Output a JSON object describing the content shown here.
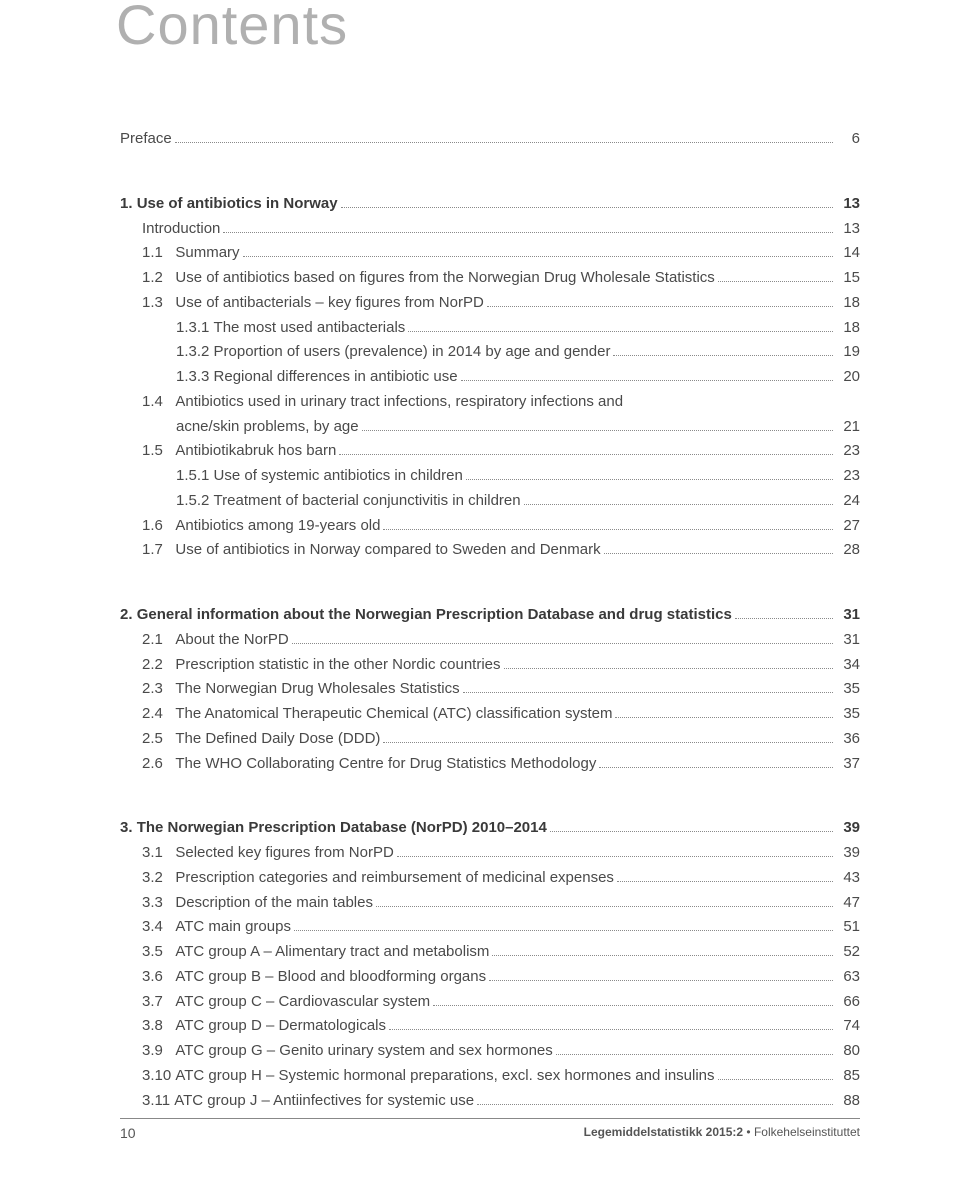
{
  "heading": "Contents",
  "footer": {
    "page": "10",
    "issue": "Legemiddelstatistikk 2015:2",
    "publisher": "Folkehelseinstituttet",
    "bullet": "•"
  },
  "sections": [
    {
      "rows": [
        {
          "num": "",
          "label": "Preface",
          "page": "6",
          "bold": false,
          "indent": 0
        }
      ]
    },
    {
      "rows": [
        {
          "num": "1. ",
          "label": "Use of antibiotics in Norway",
          "page": "13",
          "bold": true,
          "indent": 0
        },
        {
          "num": "",
          "label": "Introduction",
          "page": "13",
          "bold": false,
          "indent": 1
        },
        {
          "num": "1.1   ",
          "label": "Summary",
          "page": "14",
          "bold": false,
          "indent": 1
        },
        {
          "num": "1.2   ",
          "label": "Use of antibiotics based on figures from the Norwegian Drug Wholesale Statistics",
          "page": "15",
          "bold": false,
          "indent": 1
        },
        {
          "num": "1.3   ",
          "label": "Use of antibacterials – key figures from NorPD",
          "page": "18",
          "bold": false,
          "indent": 1
        },
        {
          "num": "1.3.1 ",
          "label": "The most used antibacterials",
          "page": "18",
          "bold": false,
          "indent": 2
        },
        {
          "num": "1.3.2 ",
          "label": "Proportion of users (prevalence) in 2014 by age and gender",
          "page": "19",
          "bold": false,
          "indent": 2
        },
        {
          "num": "1.3.3 ",
          "label": "Regional differences in antibiotic use",
          "page": "20",
          "bold": false,
          "indent": 2
        },
        {
          "num": "1.4   ",
          "label": "Antibiotics used in urinary tract infections, respiratory infections and",
          "page": "",
          "bold": false,
          "indent": 1,
          "nowrap": true
        },
        {
          "num": "",
          "label": "acne/skin problems, by age",
          "page": "21",
          "bold": false,
          "indent": 0,
          "continue": true
        },
        {
          "num": "1.5   ",
          "label": "Antibiotikabruk hos barn",
          "page": "23",
          "bold": false,
          "indent": 1
        },
        {
          "num": "1.5.1 ",
          "label": "Use of systemic antibiotics in children",
          "page": "23",
          "bold": false,
          "indent": 2
        },
        {
          "num": "1.5.2 ",
          "label": "Treatment of bacterial conjunctivitis in children",
          "page": "24",
          "bold": false,
          "indent": 2
        },
        {
          "num": "1.6   ",
          "label": "Antibiotics among 19-years old",
          "page": "27",
          "bold": false,
          "indent": 1
        },
        {
          "num": "1.7   ",
          "label": "Use of antibiotics in Norway compared to Sweden and Denmark",
          "page": "28",
          "bold": false,
          "indent": 1
        }
      ]
    },
    {
      "rows": [
        {
          "num": "2. ",
          "label": "General information about the Norwegian Prescription Database and drug statistics",
          "page": "31",
          "bold": true,
          "indent": 0
        },
        {
          "num": "2.1   ",
          "label": "About the NorPD",
          "page": "31",
          "bold": false,
          "indent": 1
        },
        {
          "num": "2.2   ",
          "label": "Prescription statistic in the other Nordic countries",
          "page": "34",
          "bold": false,
          "indent": 1
        },
        {
          "num": "2.3   ",
          "label": "The Norwegian Drug Wholesales Statistics",
          "page": "35",
          "bold": false,
          "indent": 1
        },
        {
          "num": "2.4   ",
          "label": "The Anatomical Therapeutic Chemical (ATC) classification system",
          "page": "35",
          "bold": false,
          "indent": 1
        },
        {
          "num": "2.5   ",
          "label": "The Defined Daily Dose (DDD)",
          "page": "36",
          "bold": false,
          "indent": 1
        },
        {
          "num": "2.6   ",
          "label": "The WHO Collaborating Centre for Drug Statistics Methodology",
          "page": "37",
          "bold": false,
          "indent": 1
        }
      ]
    },
    {
      "rows": [
        {
          "num": "3. ",
          "label": "The Norwegian Prescription Database (NorPD) 2010–2014",
          "page": "39",
          "bold": true,
          "indent": 0
        },
        {
          "num": "3.1   ",
          "label": "Selected key figures from NorPD",
          "page": "39",
          "bold": false,
          "indent": 1
        },
        {
          "num": "3.2   ",
          "label": "Prescription categories and reimbursement of medicinal expenses",
          "page": "43",
          "bold": false,
          "indent": 1
        },
        {
          "num": "3.3   ",
          "label": "Description of the main tables",
          "page": "47",
          "bold": false,
          "indent": 1
        },
        {
          "num": "3.4   ",
          "label": "ATC main groups",
          "page": "51",
          "bold": false,
          "indent": 1
        },
        {
          "num": "3.5   ",
          "label": "ATC group A – Alimentary tract and metabolism",
          "page": "52",
          "bold": false,
          "indent": 1
        },
        {
          "num": "3.6   ",
          "label": "ATC group B – Blood and bloodforming organs",
          "page": "63",
          "bold": false,
          "indent": 1
        },
        {
          "num": "3.7   ",
          "label": "ATC group C – Cardiovascular system",
          "page": "66",
          "bold": false,
          "indent": 1
        },
        {
          "num": "3.8   ",
          "label": "ATC group D – Dermatologicals",
          "page": "74",
          "bold": false,
          "indent": 1
        },
        {
          "num": "3.9   ",
          "label": "ATC group G – Genito urinary system and sex hormones",
          "page": "80",
          "bold": false,
          "indent": 1
        },
        {
          "num": "3.10 ",
          "label": "ATC group H – Systemic hormonal preparations, excl. sex hormones and insulins",
          "page": "85",
          "bold": false,
          "indent": 1
        },
        {
          "num": "3.11 ",
          "label": "ATC group J – Antiinfectives for systemic use",
          "page": "88",
          "bold": false,
          "indent": 1
        }
      ]
    }
  ]
}
